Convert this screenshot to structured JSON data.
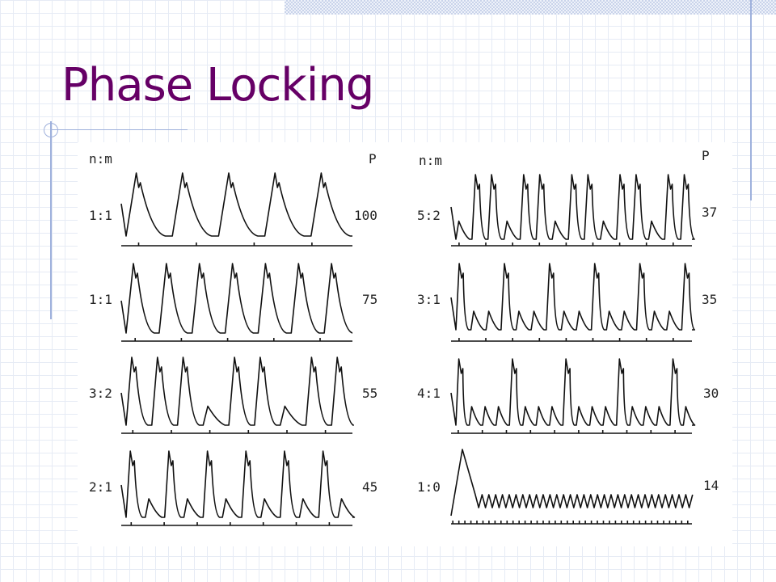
{
  "slide": {
    "title": "Phase Locking"
  },
  "figure": {
    "left_column": {
      "header_ratio": "n:m",
      "header_p": "P",
      "rows": [
        {
          "ratio": "1:1",
          "p": "100",
          "pattern": [
            1,
            1,
            1,
            1,
            1
          ]
        },
        {
          "ratio": "1:1",
          "p": "75",
          "pattern": [
            1,
            1,
            1,
            1,
            1,
            1,
            1
          ]
        },
        {
          "ratio": "3:2",
          "p": "55",
          "pattern": [
            1,
            1,
            1,
            0,
            1,
            1,
            0,
            1,
            1
          ]
        },
        {
          "ratio": "2:1",
          "p": "45",
          "pattern": [
            1,
            0,
            1,
            0,
            1,
            0,
            1,
            0,
            1,
            0,
            1,
            0
          ]
        }
      ]
    },
    "right_column": {
      "header_ratio": "n:m",
      "header_p": "P",
      "rows": [
        {
          "ratio": "5:2",
          "p": "37",
          "pattern": [
            0,
            1,
            1,
            0,
            1,
            1,
            0,
            1,
            1,
            0,
            1,
            1,
            0,
            1,
            1
          ]
        },
        {
          "ratio": "3:1",
          "p": "35",
          "pattern": [
            1,
            0,
            0,
            1,
            0,
            0,
            1,
            0,
            0,
            1,
            0,
            0,
            1,
            0,
            0,
            1
          ]
        },
        {
          "ratio": "4:1",
          "p": "30",
          "pattern": [
            1,
            0,
            0,
            0,
            1,
            0,
            0,
            0,
            1,
            0,
            0,
            0,
            1,
            0,
            0,
            0,
            1,
            0
          ]
        },
        {
          "ratio": "1:0",
          "p": "14",
          "pattern": [
            1
          ]
        }
      ]
    }
  }
}
